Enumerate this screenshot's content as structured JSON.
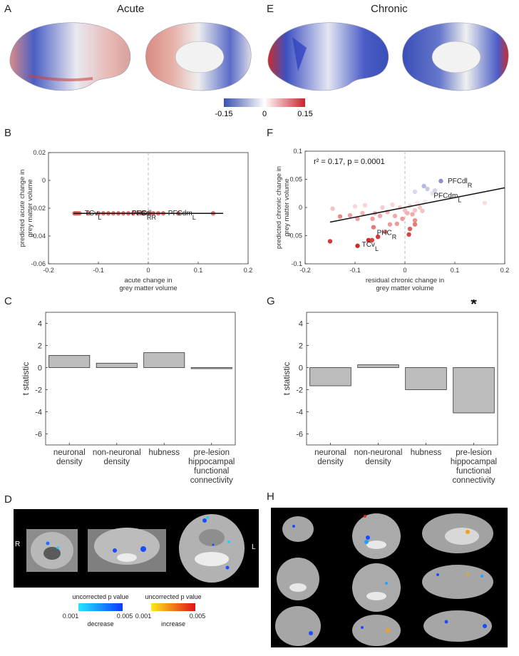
{
  "panels": {
    "A": {
      "letter": "A",
      "title": "Acute"
    },
    "E": {
      "letter": "E",
      "title": "Chronic"
    },
    "B": {
      "letter": "B"
    },
    "F": {
      "letter": "F"
    },
    "C": {
      "letter": "C"
    },
    "G": {
      "letter": "G"
    },
    "D": {
      "letter": "D"
    },
    "H": {
      "letter": "H"
    }
  },
  "colorbar": {
    "min_label": "-0.15",
    "mid_label": "0",
    "max_label": "0.15",
    "colors": [
      "#3a4fb0",
      "#ffffff",
      "#c9232b"
    ]
  },
  "mri_legend": {
    "decrease": {
      "title": "uncorrected p value",
      "low": "0.001",
      "high": "0.005",
      "caption": "decrease",
      "colors": [
        "#23e6ff",
        "#0a3bff"
      ]
    },
    "increase": {
      "title": "uncorrected p value",
      "low": "0.001",
      "high": "0.005",
      "caption": "increase",
      "colors": [
        "#ffe81a",
        "#e0101a"
      ]
    },
    "D_R": "R",
    "D_L": "L"
  },
  "chart_data": [
    {
      "id": "B",
      "type": "scatter",
      "xlabel": "acute change in grey matter volume",
      "ylabel": "predicted acute change in grey matter volume",
      "xlim": [
        -0.2,
        0.2
      ],
      "ylim": [
        -0.06,
        0.02
      ],
      "xticks": [
        "-0.2",
        "-0.1",
        "0",
        "0.1",
        "0.2"
      ],
      "yticks": [
        "0.02",
        "0",
        "-0.02",
        "-0.04",
        "-0.06"
      ],
      "fit_line": {
        "x": [
          -0.15,
          0.15
        ],
        "y": [
          -0.0237,
          -0.0237
        ]
      },
      "points": [
        {
          "x": -0.148,
          "y": -0.0237
        },
        {
          "x": -0.145,
          "y": -0.0237
        },
        {
          "x": -0.142,
          "y": -0.0237
        },
        {
          "x": -0.138,
          "y": -0.0237
        },
        {
          "x": -0.12,
          "y": -0.0237
        },
        {
          "x": -0.1,
          "y": -0.0237
        },
        {
          "x": -0.09,
          "y": -0.0237
        },
        {
          "x": -0.08,
          "y": -0.0237
        },
        {
          "x": -0.07,
          "y": -0.0237
        },
        {
          "x": -0.06,
          "y": -0.0237
        },
        {
          "x": -0.05,
          "y": -0.0237
        },
        {
          "x": -0.04,
          "y": -0.0237
        },
        {
          "x": -0.03,
          "y": -0.0237
        },
        {
          "x": -0.02,
          "y": -0.0237
        },
        {
          "x": -0.01,
          "y": -0.0237
        },
        {
          "x": 0.0,
          "y": -0.0237
        },
        {
          "x": 0.01,
          "y": -0.0237
        },
        {
          "x": 0.02,
          "y": -0.0237
        },
        {
          "x": 0.03,
          "y": -0.0237
        },
        {
          "x": 0.06,
          "y": -0.0237
        },
        {
          "x": 0.13,
          "y": -0.0237
        }
      ],
      "annotations": [
        {
          "text": "TCv",
          "sub": "L",
          "x": -0.133,
          "y": -0.0237
        },
        {
          "text": "PHC",
          "sub": "R",
          "x": -0.039,
          "y": -0.0237
        },
        {
          "text": "PFCdl",
          "sub": "R",
          "x": -0.039,
          "y": -0.0237
        },
        {
          "text": "PFCdm",
          "sub": "L",
          "x": 0.034,
          "y": -0.0237
        }
      ]
    },
    {
      "id": "F",
      "type": "scatter",
      "xlabel": "residual chronic change in grey matter volume",
      "ylabel": "predicted chronic change in grey matter volume",
      "xlim": [
        -0.2,
        0.2
      ],
      "ylim": [
        -0.1,
        0.1
      ],
      "xticks": [
        "-0.2",
        "-0.1",
        "0",
        "0.1",
        "0.2"
      ],
      "yticks": [
        "0.1",
        "0.05",
        "0",
        "-0.05",
        "-0.1"
      ],
      "stat_text": "r² = 0.17, p = 0.0001",
      "fit_line": {
        "x": [
          -0.15,
          0.2
        ],
        "y": [
          -0.026,
          0.035
        ]
      },
      "points": [
        {
          "x": -0.15,
          "y": -0.06,
          "c": "#d8383b"
        },
        {
          "x": -0.095,
          "y": -0.068,
          "c": "#cc2a2e"
        },
        {
          "x": -0.073,
          "y": -0.058,
          "c": "#cc2a2e"
        },
        {
          "x": -0.066,
          "y": -0.058,
          "c": "#d24446"
        },
        {
          "x": -0.054,
          "y": -0.052,
          "c": "#d8383b"
        },
        {
          "x": -0.063,
          "y": -0.035,
          "c": "#e07b7b"
        },
        {
          "x": -0.04,
          "y": -0.043,
          "c": "#e17f7f"
        },
        {
          "x": -0.03,
          "y": -0.03,
          "c": "#ea9d9d"
        },
        {
          "x": -0.016,
          "y": -0.029,
          "c": "#ea9d9d"
        },
        {
          "x": -0.145,
          "y": -0.002,
          "c": "#f2c3c3"
        },
        {
          "x": -0.11,
          "y": -0.014,
          "c": "#eaa1a1"
        },
        {
          "x": -0.1,
          "y": 0.002,
          "c": "#f6d6d6"
        },
        {
          "x": -0.095,
          "y": -0.02,
          "c": "#ec9f9f"
        },
        {
          "x": -0.085,
          "y": -0.01,
          "c": "#f0b9b9"
        },
        {
          "x": -0.08,
          "y": 0.004,
          "c": "#f6d6d6"
        },
        {
          "x": -0.065,
          "y": -0.02,
          "c": "#ec9f9f"
        },
        {
          "x": -0.06,
          "y": -0.01,
          "c": "#f0b4b4"
        },
        {
          "x": -0.05,
          "y": -0.015,
          "c": "#eeaaaa"
        },
        {
          "x": -0.045,
          "y": 0.0,
          "c": "#f4cccc"
        },
        {
          "x": -0.035,
          "y": -0.008,
          "c": "#f0b4b4"
        },
        {
          "x": -0.025,
          "y": 0.005,
          "c": "#f6d6d6"
        },
        {
          "x": -0.02,
          "y": -0.015,
          "c": "#eeaaaa"
        },
        {
          "x": -0.01,
          "y": 0.0,
          "c": "#f4cccc"
        },
        {
          "x": -0.005,
          "y": -0.02,
          "c": "#ec9f9f"
        },
        {
          "x": 0.0,
          "y": -0.005,
          "c": "#f2c3c3"
        },
        {
          "x": 0.005,
          "y": -0.01,
          "c": "#f0b4b4"
        },
        {
          "x": 0.01,
          "y": 0.003,
          "c": "#f6d6d6"
        },
        {
          "x": 0.015,
          "y": -0.012,
          "c": "#eeaaaa"
        },
        {
          "x": 0.02,
          "y": -0.005,
          "c": "#f2c3c3"
        },
        {
          "x": 0.025,
          "y": 0.008,
          "c": "#f9e6e6"
        },
        {
          "x": 0.03,
          "y": 0.0,
          "c": "#f4cccc"
        },
        {
          "x": 0.035,
          "y": -0.006,
          "c": "#f2c3c3"
        },
        {
          "x": 0.04,
          "y": 0.01,
          "c": "#f9e6e6"
        },
        {
          "x": 0.02,
          "y": -0.023,
          "c": "#e88f8f"
        },
        {
          "x": 0.01,
          "y": -0.038,
          "c": "#dd5e5e"
        },
        {
          "x": 0.008,
          "y": -0.048,
          "c": "#d24446"
        },
        {
          "x": 0.02,
          "y": -0.03,
          "c": "#e47c7c"
        },
        {
          "x": -0.13,
          "y": -0.016,
          "c": "#e68c8c"
        },
        {
          "x": 0.16,
          "y": 0.008,
          "c": "#f6dede"
        },
        {
          "x": 0.055,
          "y": 0.025,
          "c": "#e3e3f0"
        },
        {
          "x": 0.02,
          "y": 0.028,
          "c": "#d7d9ec"
        },
        {
          "x": 0.038,
          "y": 0.038,
          "c": "#b5b8df"
        },
        {
          "x": 0.045,
          "y": 0.033,
          "c": "#c7c9e6"
        },
        {
          "x": 0.072,
          "y": 0.047,
          "c": "#8b90c9"
        },
        {
          "x": 0.06,
          "y": 0.03,
          "c": "#d2d4ea"
        }
      ],
      "annotations": [
        {
          "text": "PFCdl",
          "sub": "R",
          "x": 0.08,
          "y": 0.047
        },
        {
          "text": "PFCdm",
          "sub": "L",
          "x": 0.052,
          "y": 0.021
        },
        {
          "text": "PHC",
          "sub": "R",
          "x": -0.062,
          "y": -0.045
        },
        {
          "text": "TCv",
          "sub": "L",
          "x": -0.092,
          "y": -0.066
        }
      ]
    },
    {
      "id": "C",
      "type": "bar",
      "ylabel": "t statistic",
      "ylim": [
        -7,
        5
      ],
      "yticks": [
        "4",
        "2",
        "0",
        "-2",
        "-4",
        "-6"
      ],
      "categories": [
        "neuronal density",
        "non-neuronal density",
        "hubness",
        "pre-lesion hippocampal functional connectivity"
      ],
      "values": [
        1.1,
        0.4,
        1.35,
        -0.1
      ]
    },
    {
      "id": "G",
      "type": "bar",
      "ylabel": "t statistic",
      "ylim": [
        -7,
        5
      ],
      "yticks": [
        "4",
        "2",
        "0",
        "-2",
        "-4",
        "-6"
      ],
      "categories": [
        "neuronal density",
        "non-neuronal density",
        "hubness",
        "pre-lesion hippocampal functional connectivity"
      ],
      "values": [
        -1.65,
        0.25,
        -2.0,
        -4.1
      ],
      "significance": {
        "index": 3,
        "marker": "*"
      }
    }
  ]
}
